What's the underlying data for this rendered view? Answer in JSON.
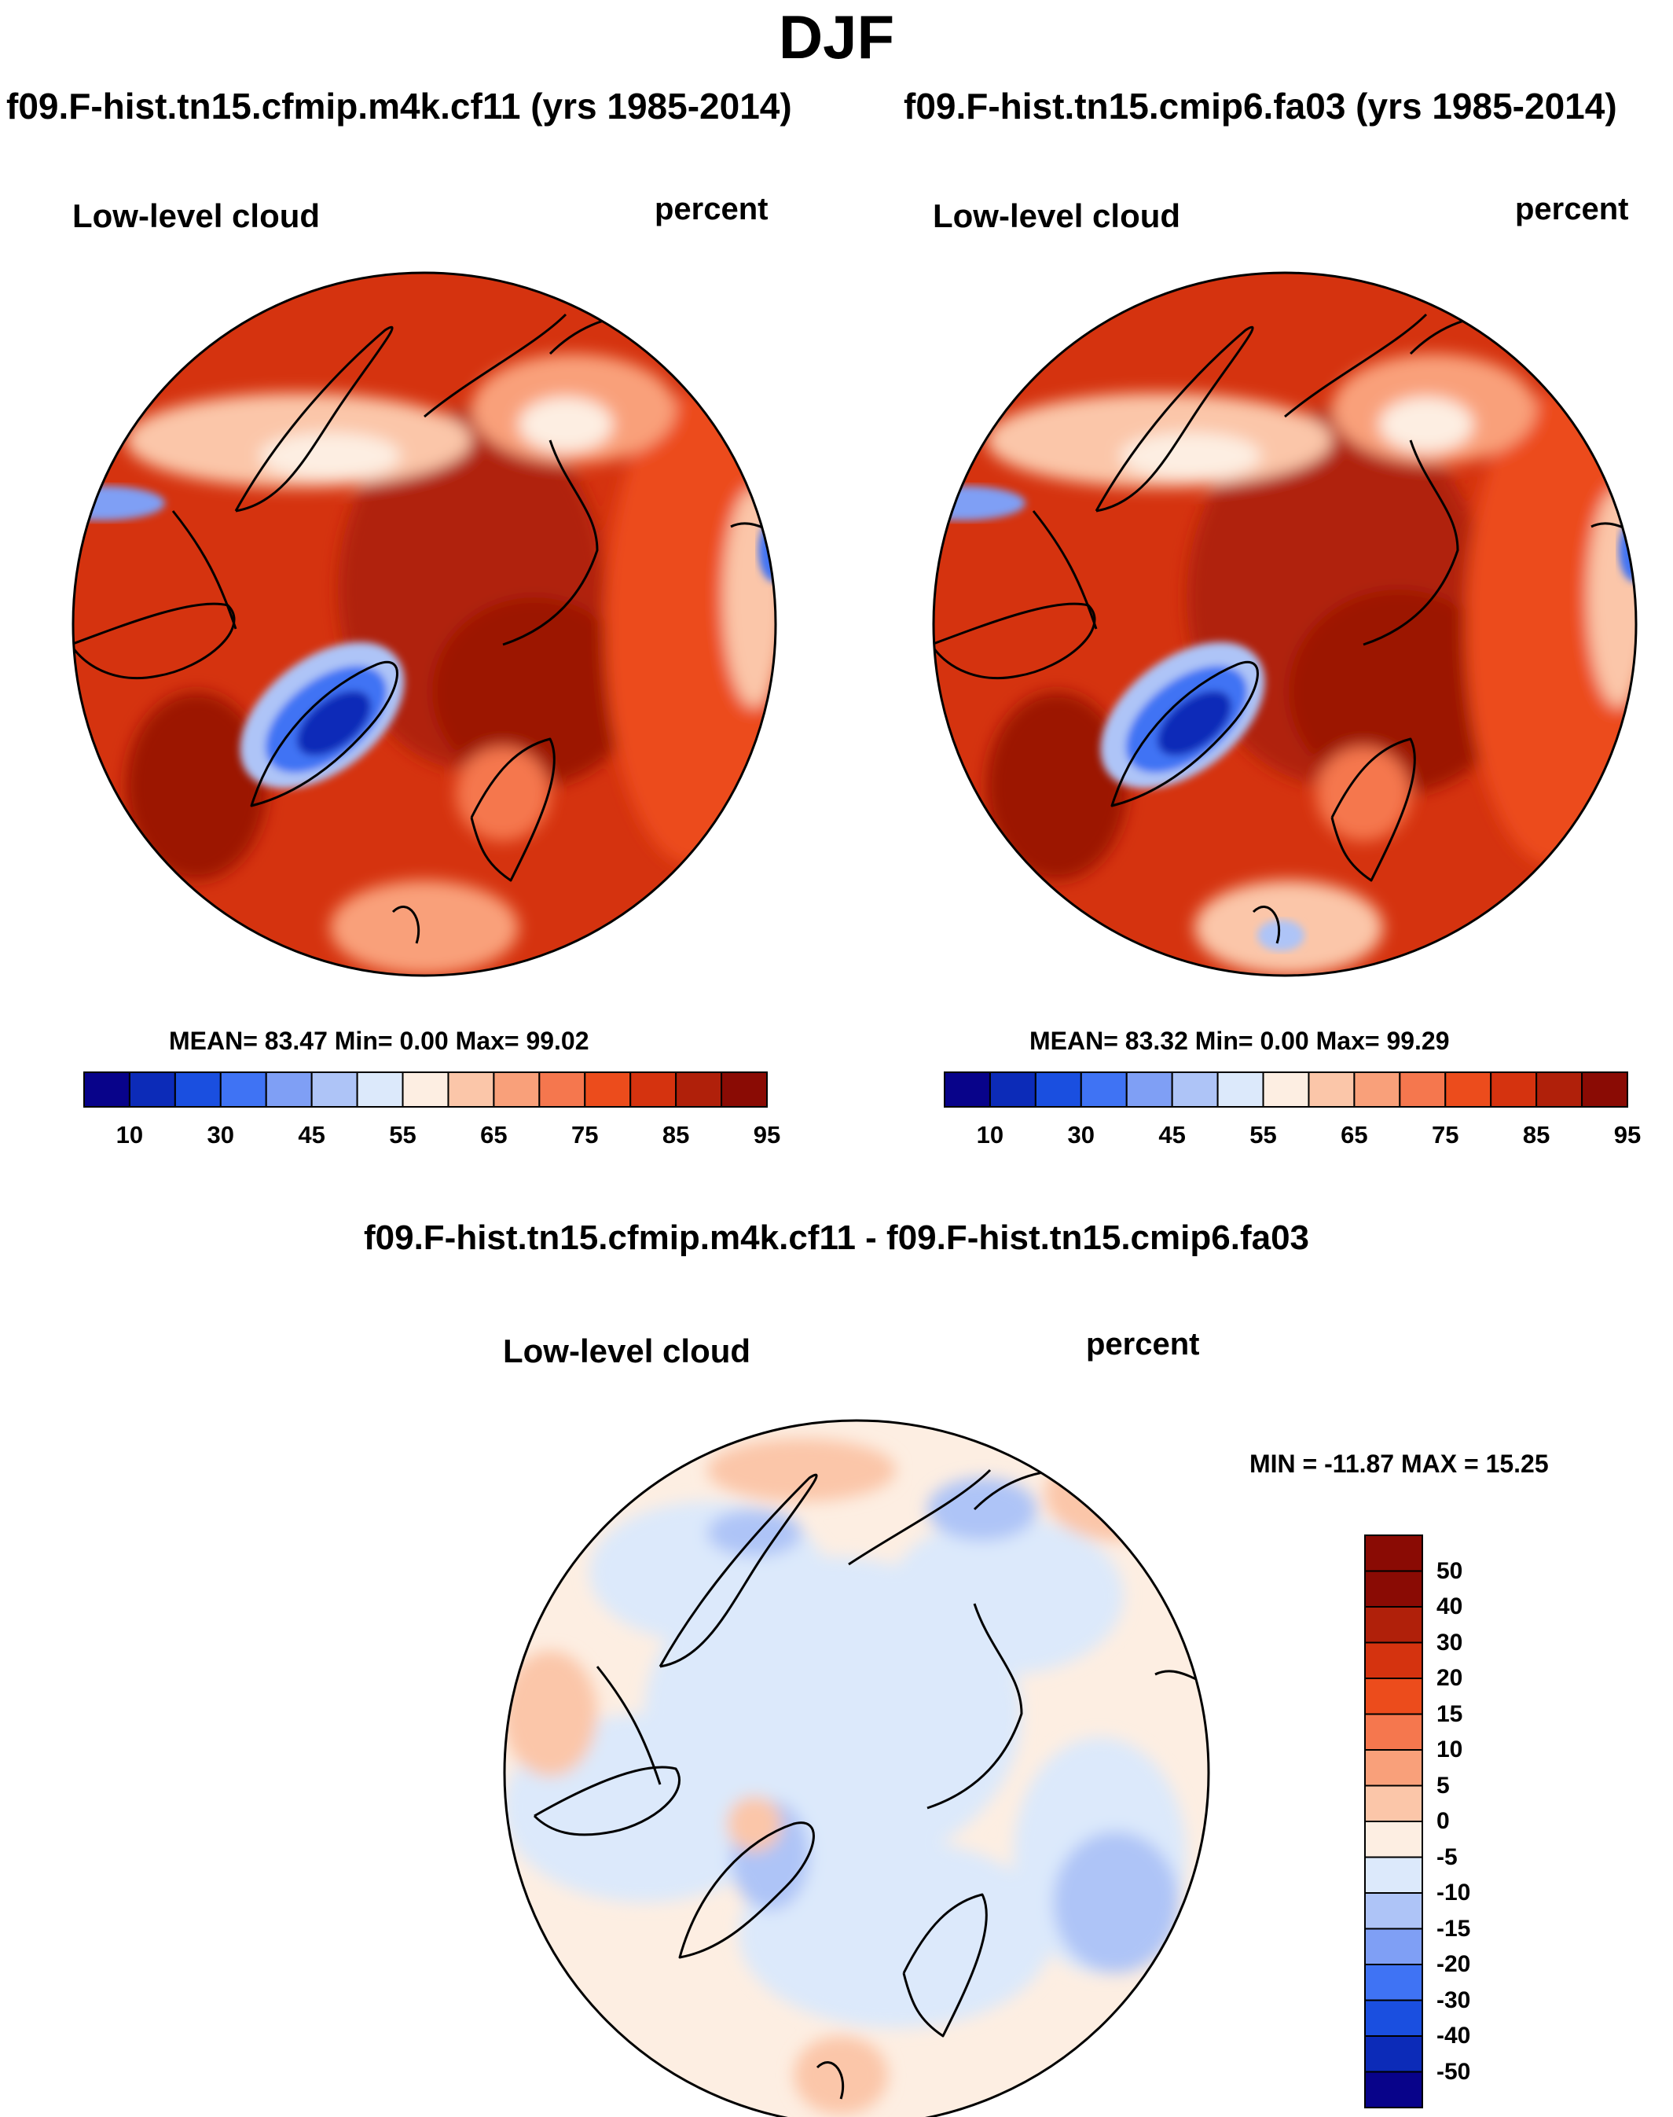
{
  "title": "DJF",
  "panels": [
    {
      "run": "f09.F-hist.tn15.cfmip.m4k.cf11 (yrs 1985-2014)",
      "variable": "Low-level cloud",
      "units": "percent",
      "stats": "MEAN=  83.47  Min=    0.00  Max=  99.02",
      "mean": 83.47,
      "min": 0.0,
      "max": 99.02
    },
    {
      "run": "f09.F-hist.tn15.cmip6.fa03 (yrs 1985-2014)",
      "variable": "Low-level cloud",
      "units": "percent",
      "stats": "MEAN=  83.32  Min=    0.00  Max=  99.29",
      "mean": 83.32,
      "min": 0.0,
      "max": 99.29
    }
  ],
  "difference": {
    "title": "f09.F-hist.tn15.cfmip.m4k.cf11 - f09.F-hist.tn15.cmip6.fa03",
    "variable": "Low-level cloud",
    "units": "percent",
    "stats": "MIN = -11.87 MAX =  15.25",
    "min": -11.87,
    "max": 15.25
  },
  "colorbar_top": {
    "tick_labels": [
      "10",
      "30",
      "45",
      "55",
      "65",
      "75",
      "85",
      "95"
    ],
    "colors": [
      "#08038a",
      "#0c2bb8",
      "#1a4fe0",
      "#3f73f4",
      "#7f9ff5",
      "#aec4f7",
      "#dce9fb",
      "#fdeee2",
      "#fbc6a9",
      "#f9a07a",
      "#f5774e",
      "#ec4c1c",
      "#d5330f",
      "#b0200a",
      "#8a0b04"
    ]
  },
  "colorbar_diff": {
    "tick_labels": [
      "50",
      "40",
      "30",
      "20",
      "15",
      "10",
      "5",
      "0",
      "-5",
      "-10",
      "-15",
      "-20",
      "-30",
      "-40",
      "-50"
    ],
    "colors": [
      "#8a0b04",
      "#b0200a",
      "#d5330f",
      "#ec4c1c",
      "#f5774e",
      "#f9a07a",
      "#fbc6a9",
      "#fdeee2",
      "#dce9fb",
      "#aec4f7",
      "#7f9ff5",
      "#3f73f4",
      "#1a4fe0",
      "#0c2bb8",
      "#08038a"
    ]
  },
  "chart_data": {
    "type": "heatmap",
    "projection": "north polar stereographic",
    "season": "DJF",
    "field": "Low-level cloud",
    "units": "percent",
    "panels": [
      {
        "name": "f09.F-hist.tn15.cfmip.m4k.cf11 (yrs 1985-2014)",
        "mean": 83.47,
        "min": 0.0,
        "max": 99.02,
        "levels": [
          10,
          20,
          30,
          40,
          45,
          50,
          55,
          60,
          65,
          70,
          75,
          80,
          85,
          90,
          95
        ]
      },
      {
        "name": "f09.F-hist.tn15.cmip6.fa03 (yrs 1985-2014)",
        "mean": 83.32,
        "min": 0.0,
        "max": 99.29,
        "levels": [
          10,
          20,
          30,
          40,
          45,
          50,
          55,
          60,
          65,
          70,
          75,
          80,
          85,
          90,
          95
        ]
      },
      {
        "name": "f09.F-hist.tn15.cfmip.m4k.cf11 - f09.F-hist.tn15.cmip6.fa03",
        "min": -11.87,
        "max": 15.25,
        "levels": [
          -50,
          -40,
          -30,
          -20,
          -15,
          -10,
          -5,
          0,
          5,
          10,
          15,
          20,
          30,
          40,
          50
        ]
      }
    ]
  }
}
